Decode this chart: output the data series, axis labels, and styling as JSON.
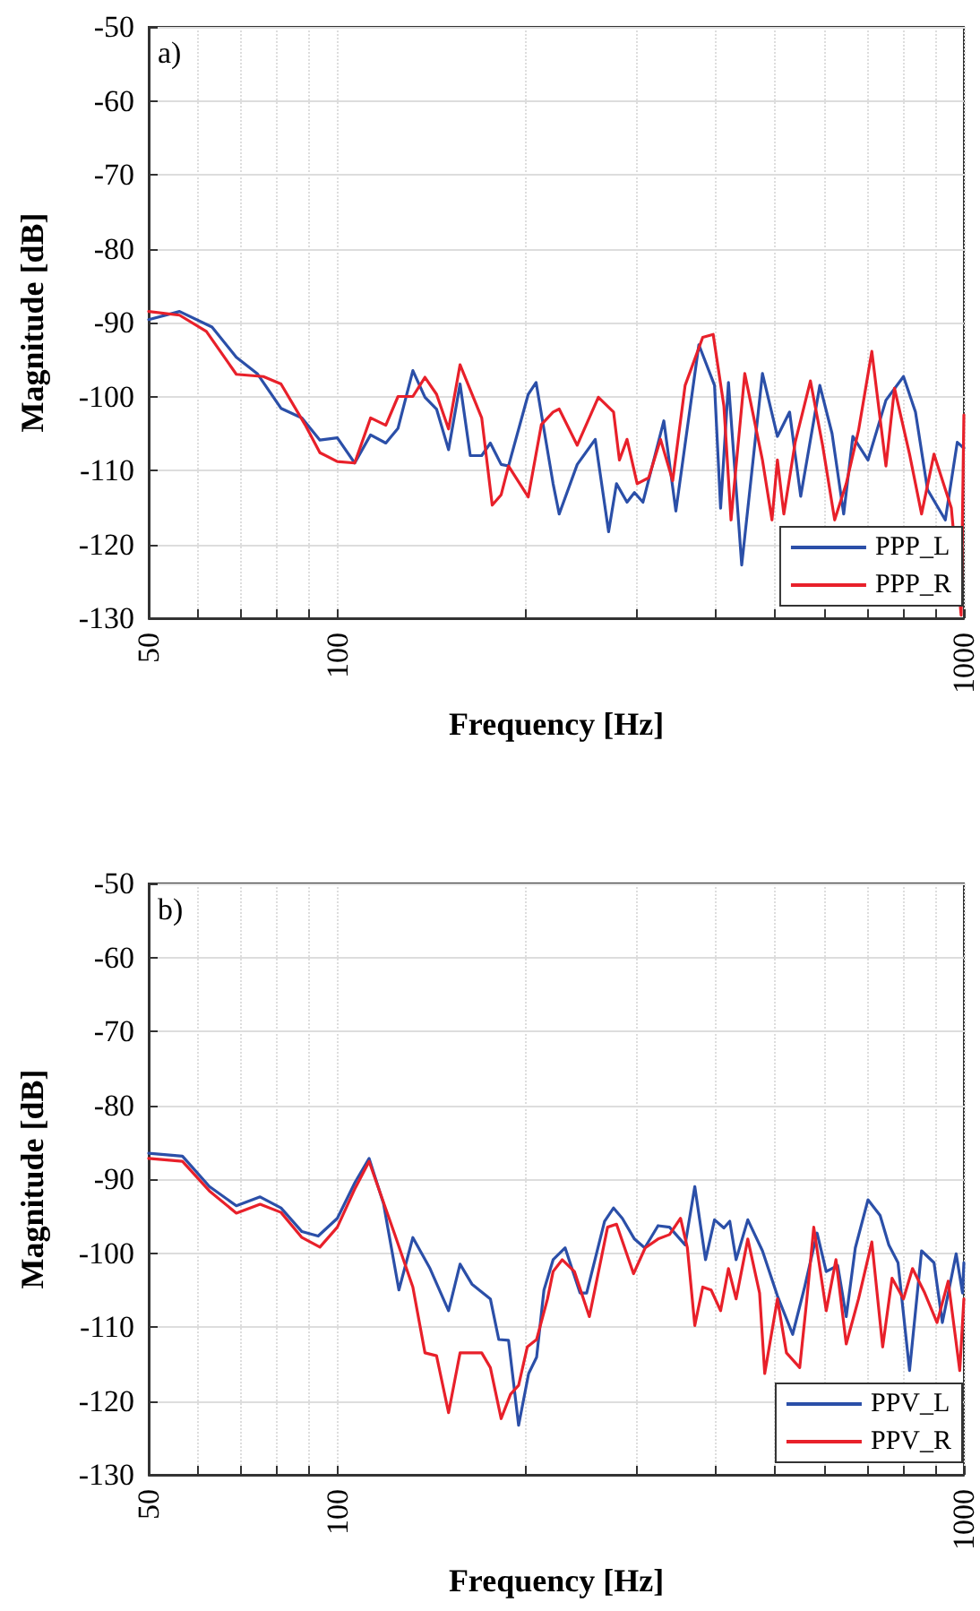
{
  "chart_data": [
    {
      "type": "line",
      "annotations": [
        "a)"
      ],
      "xlabel": "Frequency [Hz]",
      "ylabel": "Magnitude [dB]",
      "log": "x",
      "xlim": [
        50,
        1000
      ],
      "ylim": [
        -130,
        -50
      ],
      "xticks": [
        50,
        {
          "value": 60,
          "label": null
        },
        {
          "value": 70,
          "label": null
        },
        {
          "value": 80,
          "label": null
        },
        {
          "value": 90,
          "label": null
        },
        100,
        {
          "value": 200,
          "label": null
        },
        {
          "value": 300,
          "label": null
        },
        {
          "value": 400,
          "label": null
        },
        {
          "value": 500,
          "label": null
        },
        {
          "value": 600,
          "label": null
        },
        {
          "value": 700,
          "label": null
        },
        {
          "value": 800,
          "label": null
        },
        {
          "value": 900,
          "label": null
        },
        1000
      ],
      "yticks": [
        -130,
        -120,
        -110,
        -100,
        -90,
        -80,
        -70,
        -60,
        -50
      ],
      "grid": true,
      "legend": "bottom right",
      "line_style": "solid",
      "marker": "none",
      "series": [
        {
          "name": "PPP_L",
          "color": "#2b4fa8",
          "x": [
            50,
            56,
            63.1,
            69,
            74.5,
            81.3,
            87.8,
            93.8,
            100,
            106.6,
            113,
            119.5,
            125,
            132,
            138,
            144,
            150.5,
            157,
            163,
            170,
            175.5,
            182.6,
            187.6,
            201.7,
            207.6,
            221,
            226,
            241.5,
            258,
            271,
            279,
            290,
            298,
            307.5,
            332,
            347,
            377.6,
            400,
            409,
            421,
            442,
            477,
            504,
            527,
            549,
            589,
            616,
            643,
            665,
            703,
            751,
            801,
            837,
            875,
            934,
            976,
            1000
          ],
          "values": [
            -89.6,
            -88.5,
            -90.6,
            -94.7,
            -96.9,
            -101.6,
            -102.9,
            -105.9,
            -105.6,
            -109,
            -105.2,
            -106.3,
            -104.3,
            -96.5,
            -100.1,
            -101.7,
            -107.2,
            -98.3,
            -108,
            -108,
            -106.3,
            -109.2,
            -109.4,
            -99.7,
            -98.1,
            -111.8,
            -115.9,
            -109.2,
            -105.8,
            -118.3,
            -111.8,
            -114.3,
            -113,
            -114.3,
            -103.3,
            -115.5,
            -93,
            -98.5,
            -115.1,
            -98.1,
            -122.8,
            -96.9,
            -105.4,
            -102.1,
            -113.5,
            -98.5,
            -105,
            -115.9,
            -105.4,
            -108.6,
            -100.5,
            -97.3,
            -102.1,
            -112.6,
            -116.7,
            -106.2,
            -107
          ]
        },
        {
          "name": "PPP_R",
          "color": "#e8202a",
          "x": [
            50,
            56,
            61.8,
            69,
            76.2,
            81.3,
            88.8,
            93.8,
            100,
            106.6,
            113,
            119.5,
            125,
            132,
            138,
            144,
            150.5,
            157,
            170,
            176.7,
            182.6,
            187.6,
            201.7,
            211.7,
            221,
            226,
            241.5,
            261,
            276,
            282,
            290,
            301,
            314,
            328,
            343,
            359,
            383,
            398,
            414,
            425,
            447,
            477,
            494,
            504,
            516,
            538,
            569,
            595,
            622,
            649,
            679,
            713,
            751,
            775,
            819,
            856,
            896,
            955,
            990,
            1000
          ],
          "values": [
            -88.5,
            -89,
            -91.2,
            -97,
            -97.3,
            -98.3,
            -103.8,
            -107.6,
            -108.8,
            -109,
            -102.9,
            -103.9,
            -100,
            -100,
            -97.4,
            -99.7,
            -104.4,
            -95.7,
            -102.9,
            -114.7,
            -113.3,
            -109.4,
            -113.6,
            -103.8,
            -102.1,
            -101.7,
            -106.6,
            -100.1,
            -102.1,
            -108.6,
            -105.8,
            -111.8,
            -111,
            -105.8,
            -111.4,
            -98.5,
            -92,
            -91.6,
            -101.3,
            -116.7,
            -96.9,
            -108.6,
            -116.7,
            -108.6,
            -115.9,
            -106.2,
            -97.9,
            -106.6,
            -116.7,
            -111.8,
            -104.6,
            -93.9,
            -109.4,
            -98.9,
            -107.8,
            -115.9,
            -107.8,
            -115.1,
            -129.6,
            -102.5
          ]
        }
      ]
    },
    {
      "type": "line",
      "annotations": [
        "b)"
      ],
      "xlabel": "Frequency [Hz]",
      "ylabel": "Magnitude [dB]",
      "log": "x",
      "xlim": [
        50,
        1000
      ],
      "ylim": [
        -130,
        -50
      ],
      "xticks": [
        50,
        {
          "value": 60,
          "label": null
        },
        {
          "value": 70,
          "label": null
        },
        {
          "value": 80,
          "label": null
        },
        {
          "value": 90,
          "label": null
        },
        100,
        {
          "value": 200,
          "label": null
        },
        {
          "value": 300,
          "label": null
        },
        {
          "value": 400,
          "label": null
        },
        {
          "value": 500,
          "label": null
        },
        {
          "value": 600,
          "label": null
        },
        {
          "value": 700,
          "label": null
        },
        {
          "value": 800,
          "label": null
        },
        {
          "value": 900,
          "label": null
        },
        1000
      ],
      "yticks": [
        -130,
        -120,
        -110,
        -100,
        -90,
        -80,
        -70,
        -60,
        -50
      ],
      "grid": true,
      "legend": "bottom right",
      "line_style": "solid",
      "marker": "none",
      "series": [
        {
          "name": "PPV_L",
          "color": "#2b4fa8",
          "x": [
            50,
            56.6,
            62.5,
            69,
            75.3,
            81.3,
            87.8,
            93.2,
            100,
            106.8,
            112.4,
            118.5,
            125.4,
            132,
            140.6,
            150.5,
            157,
            164,
            175.5,
            181,
            187.6,
            194.7,
            202,
            208,
            213.7,
            221,
            231,
            244,
            250,
            267,
            276,
            285,
            298,
            309.5,
            325,
            339,
            359,
            372,
            387,
            400,
            414,
            423,
            433,
            452,
            477,
            504,
            533,
            557,
            583,
            603,
            629,
            649,
            671,
            703,
            735,
            759,
            785,
            819,
            856,
            896,
            924,
            972,
            995,
            1000
          ],
          "values": [
            -86.5,
            -86.9,
            -91,
            -93.6,
            -92.4,
            -93.9,
            -97.1,
            -97.7,
            -95.3,
            -90.4,
            -87.2,
            -93.3,
            -105,
            -97.9,
            -102.1,
            -107.8,
            -101.5,
            -104.2,
            -106.2,
            -111.7,
            -111.8,
            -123.3,
            -116.3,
            -114.1,
            -105,
            -100.9,
            -99.3,
            -105.4,
            -105.4,
            -95.7,
            -93.9,
            -95.3,
            -98.1,
            -99.3,
            -96.3,
            -96.5,
            -98.9,
            -91,
            -100.9,
            -95.5,
            -96.6,
            -95.7,
            -100.9,
            -95.5,
            -99.7,
            -105.8,
            -111,
            -104.6,
            -97.3,
            -102.5,
            -101.7,
            -108.6,
            -99.3,
            -92.8,
            -94.9,
            -98.9,
            -101.3,
            -115.9,
            -99.7,
            -101.3,
            -109.4,
            -100.1,
            -105.4,
            -101.3
          ]
        },
        {
          "name": "PPV_R",
          "color": "#e8202a",
          "x": [
            50,
            56.6,
            62.5,
            69,
            75.3,
            81.3,
            87.8,
            93.8,
            100,
            106.8,
            112.4,
            123.3,
            132,
            138,
            144,
            150.5,
            157,
            170,
            175.5,
            182.6,
            189,
            194.7,
            201,
            208,
            216.5,
            221,
            228.5,
            239,
            252.5,
            270,
            279,
            297,
            310,
            325,
            339,
            353,
            362,
            372,
            383,
            395,
            409,
            421,
            433,
            452,
            472,
            481,
            504,
            521,
            547,
            561,
            576,
            603,
            625,
            649,
            679,
            713,
            742,
            768,
            801,
            828,
            866,
            906,
            944,
            985,
            1000
          ],
          "values": [
            -87.2,
            -87.6,
            -91.6,
            -94.6,
            -93.4,
            -94.5,
            -97.9,
            -99.2,
            -96.5,
            -91.2,
            -87.6,
            -97.3,
            -104.6,
            -113.5,
            -113.9,
            -121.6,
            -113.5,
            -113.5,
            -115.5,
            -122.4,
            -119.1,
            -117.9,
            -112.7,
            -111.7,
            -106.2,
            -102.5,
            -100.9,
            -102.5,
            -108.6,
            -96.5,
            -96.1,
            -102.8,
            -99.3,
            -98.1,
            -97.5,
            -95.3,
            -99.3,
            -109.8,
            -104.6,
            -105,
            -107.8,
            -102.1,
            -106.2,
            -98.1,
            -105.4,
            -116.3,
            -106.2,
            -113.5,
            -115.5,
            -106.6,
            -96.5,
            -107.8,
            -100.9,
            -112.3,
            -106.2,
            -98.5,
            -112.7,
            -103.4,
            -106.2,
            -102.1,
            -105.4,
            -109.4,
            -103.8,
            -115.9,
            -106.2
          ]
        }
      ]
    }
  ]
}
